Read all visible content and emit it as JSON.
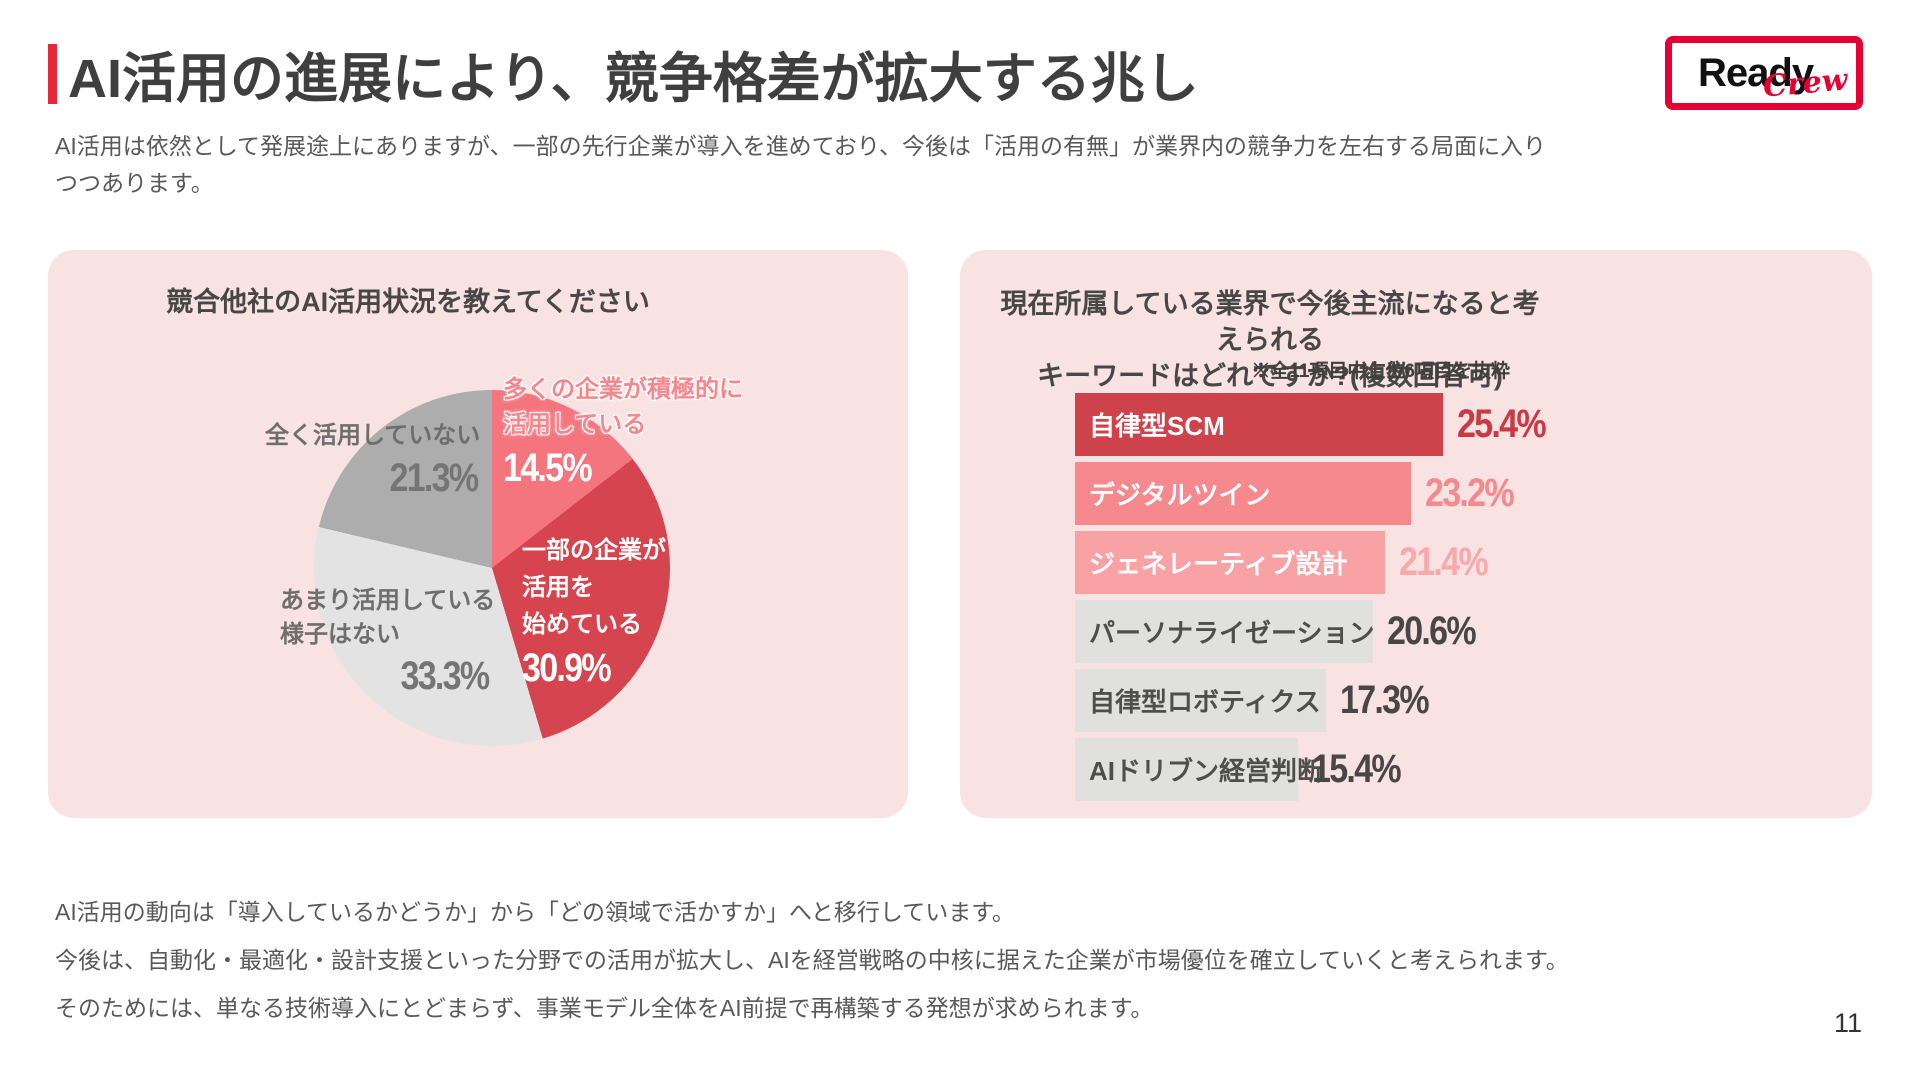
{
  "header": {
    "title": "AI活用の進展により、競争格差が拡大する兆し",
    "subtitle": "AI活用は依然として発展途上にありますが、一部の先行企業が導入を進めており、今後は「活用の有無」が業界内の競争力を左右する局面に入りつつあります。",
    "logo": {
      "primary": "Ready",
      "secondary": "Crew"
    }
  },
  "footer": {
    "lines": [
      "AI活用の動向は「導入しているかどうか」から「どの領域で活かすか」へと移行しています。",
      "今後は、自動化・最適化・設計支援といった分野での活用が拡大し、AIを経営戦略の中核に据えた企業が市場優位を確立していくと考えられます。",
      "そのためには、単なる技術導入にとどまらず、事業モデル全体をAI前提で再構築する発想が求められます。"
    ],
    "page_number": "11"
  },
  "colors": {
    "accent_red": "#E5283C",
    "logo_red": "#E60033",
    "panel_pink": "#F8E2E2"
  },
  "chart_data": [
    {
      "type": "pie",
      "title": "競合他社のAI活用状況を教えてください",
      "start_angle_deg": 0,
      "direction": "clockwise",
      "legend_position": "none",
      "slices": [
        {
          "label": "多くの企業が積極的に活用している",
          "label_lines": [
            "多くの企業が積極的に",
            "活用している"
          ],
          "value": 14.5,
          "display": "14.5%",
          "color": "#F5757E"
        },
        {
          "label": "一部の企業が活用を始めている",
          "label_lines": [
            "一部の企業が",
            "活用を",
            "始めている"
          ],
          "value": 30.9,
          "display": "30.9%",
          "color": "#D6454F"
        },
        {
          "label": "あまり活用している様子はない",
          "label_lines": [
            "あまり活用している",
            "様子はない"
          ],
          "value": 33.3,
          "display": "33.3%",
          "color": "#E3E3E4"
        },
        {
          "label": "全く活用していない",
          "label_lines": [
            "全く活用していない"
          ],
          "value": 21.3,
          "display": "21.3%",
          "color": "#ADADAD"
        }
      ]
    },
    {
      "type": "bar",
      "orientation": "horizontal",
      "title": "現在所属している業界で今後主流になると考えられるキーワードはどれですか?(複数回答可)",
      "title_lines": [
        "現在所属している業界で今後主流になると考えられる",
        "キーワードはどれですか?(複数回答可)"
      ],
      "note": "※全11項目中上位6項目を抜粋",
      "xlim": [
        0,
        25.4
      ],
      "categories": [
        "自律型SCM",
        "デジタルツイン",
        "ジェネレーティブ設計",
        "パーソナライゼーション",
        "自律型ロボティクス",
        "AIドリブン経営判断"
      ],
      "values": [
        25.4,
        23.2,
        21.4,
        20.6,
        17.3,
        15.4
      ],
      "bars": [
        {
          "label": "自律型SCM",
          "value": 25.4,
          "display": "25.4%",
          "bar_color": "#CE424C",
          "label_color": "#FFFFFF",
          "value_color": "#C93A45"
        },
        {
          "label": "デジタルツイン",
          "value": 23.2,
          "display": "23.2%",
          "bar_color": "#F5898D",
          "label_color": "#FFFFFF",
          "value_color": "#F4898E"
        },
        {
          "label": "ジェネレーティブ設計",
          "value": 21.4,
          "display": "21.4%",
          "bar_color": "#F8A2A6",
          "label_color": "#FFFFFF",
          "value_color": "#F9A8AC"
        },
        {
          "label": "パーソナライゼーション",
          "value": 20.6,
          "display": "20.6%",
          "bar_color": "#E0E0DE",
          "label_color": "#4E4E4E",
          "value_color": "#474747"
        },
        {
          "label": "自律型ロボティクス",
          "value": 17.3,
          "display": "17.3%",
          "bar_color": "#E0E0DE",
          "label_color": "#4E4E4E",
          "value_color": "#474747"
        },
        {
          "label": "AIドリブン経営判断",
          "value": 15.4,
          "display": "15.4%",
          "bar_color": "#E0E0DE",
          "label_color": "#4E4E4E",
          "value_color": "#474747"
        }
      ]
    }
  ]
}
